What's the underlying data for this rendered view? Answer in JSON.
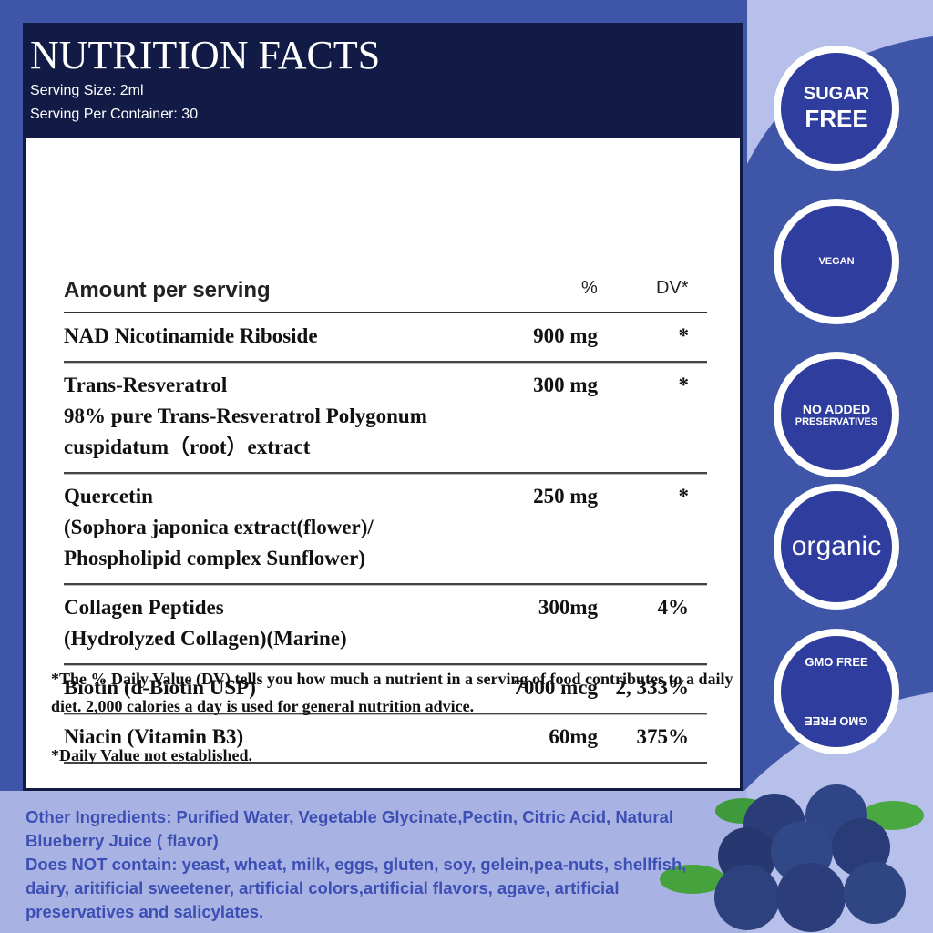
{
  "header": {
    "title": "NUTRITION FACTS",
    "serving_size": "Serving Size: 2ml",
    "servings_per_container": "Serving Per Container: 30"
  },
  "table": {
    "columns": [
      "Amount per serving",
      "%",
      "DV*"
    ],
    "rows": [
      {
        "name": [
          "NAD Nicotinamide Riboside"
        ],
        "amount": "900 mg",
        "dv": "*"
      },
      {
        "name": [
          "Trans-Resveratrol",
          "98% pure Trans-Resveratrol Polygonum",
          "cuspidatum（root）extract"
        ],
        "amount": "300 mg",
        "dv": "*"
      },
      {
        "name": [
          "Quercetin",
          "(Sophora japonica extract(flower)/",
          "Phospholipid complex Sunflower)"
        ],
        "amount": "250 mg",
        "dv": "*"
      },
      {
        "name": [
          "Collagen Peptides",
          "(Hydrolyzed Collagen)(Marine)"
        ],
        "amount": "300mg",
        "dv": "4%"
      },
      {
        "name": [
          "Biotin (d-Biotin USP)"
        ],
        "amount": "7000 mcg",
        "dv": "2, 333%"
      },
      {
        "name": [
          "Niacin (Vitamin B3)"
        ],
        "amount": "60mg",
        "dv": "375%"
      }
    ]
  },
  "footnotes": [
    "*The % Daily Value (DV) tells you how much a nutrient in a serving of food contributes to a daily diet. 2,000 calories a day is used for general nutrition advice.",
    "*Daily Value not established."
  ],
  "ingredients": [
    "Other Ingredients: Purified Water, Vegetable Glycinate,Pectin, Citric Acid, Natural Blueberry Juice ( flavor)",
    "Does NOT contain: yeast, wheat, milk, eggs, gluten, soy, gelein,pea-nuts, shellfish, dairy, aritificial sweetener, artificial colors,artificial flavors, agave, artificial preservatives and salicylates."
  ],
  "badges": [
    {
      "lines": [
        "SUGAR",
        "FREE"
      ]
    },
    {
      "lines": [
        "VEGAN"
      ]
    },
    {
      "lines": [
        "NO ADDED",
        "PRESERVATIVES"
      ]
    },
    {
      "lines": [
        "organic"
      ]
    },
    {
      "lines": [
        "GMO FREE",
        "GMO FREE"
      ]
    }
  ]
}
